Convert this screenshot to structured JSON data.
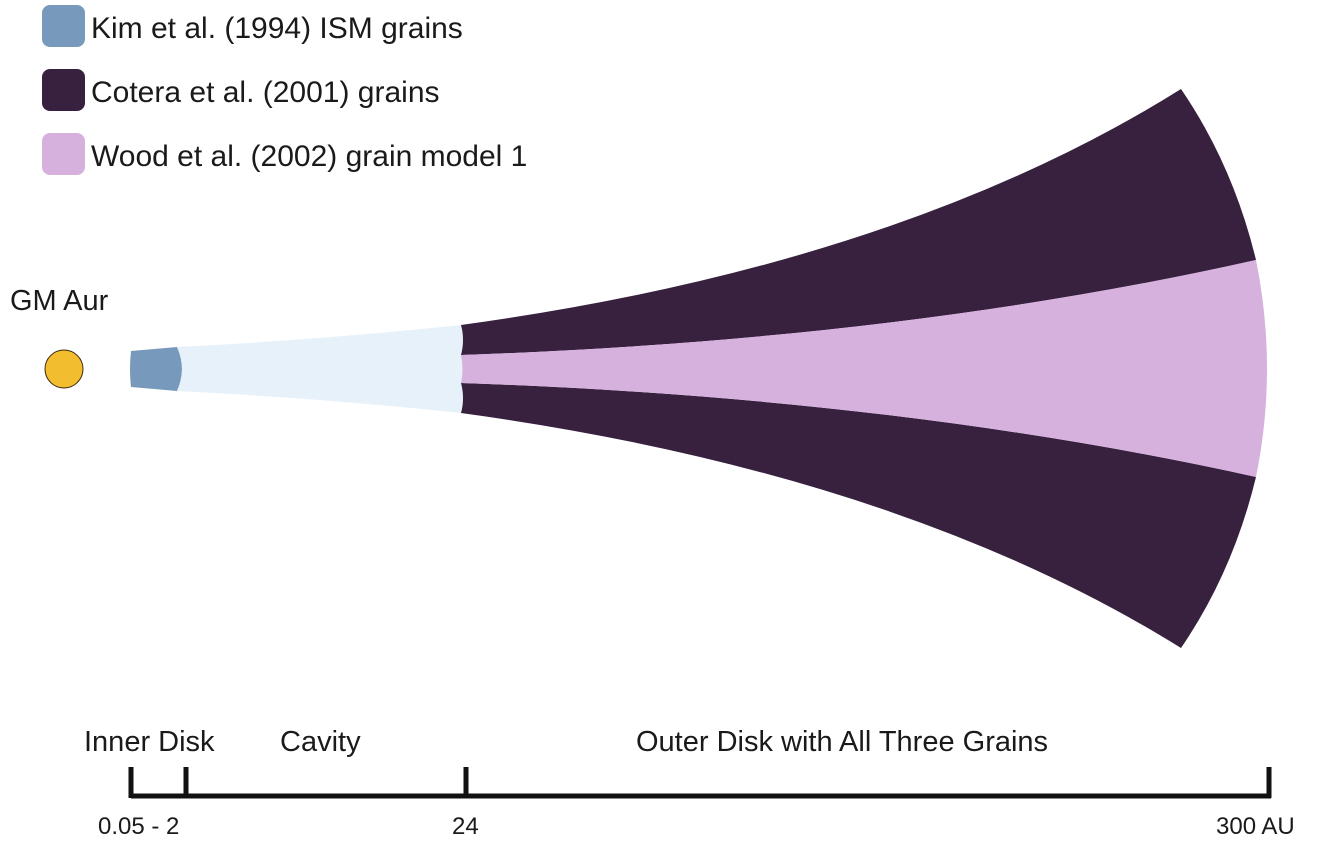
{
  "legend": {
    "items": [
      {
        "label": "Kim et al. (1994) ISM grains",
        "color": "#7799bb"
      },
      {
        "label": "Cotera et al. (2001) grains",
        "color": "#37213f"
      },
      {
        "label": "Wood et al. (2002) grain model 1",
        "color": "#d7b1de"
      }
    ]
  },
  "star": {
    "label": "GM Aur",
    "color": "#f2bd2e"
  },
  "disk": {
    "inner_color": "#7799bb",
    "cavity_color": "#e7f1fa",
    "outer_dark_color": "#37213f",
    "outer_light_color": "#d7b1de"
  },
  "scale": {
    "regions": [
      {
        "label": "Inner Disk"
      },
      {
        "label": "Cavity"
      },
      {
        "label": "Outer Disk with All Three Grains"
      }
    ],
    "ticks": [
      {
        "label": "0.05 - 2"
      },
      {
        "label": "24"
      },
      {
        "label": "300 AU"
      }
    ]
  }
}
